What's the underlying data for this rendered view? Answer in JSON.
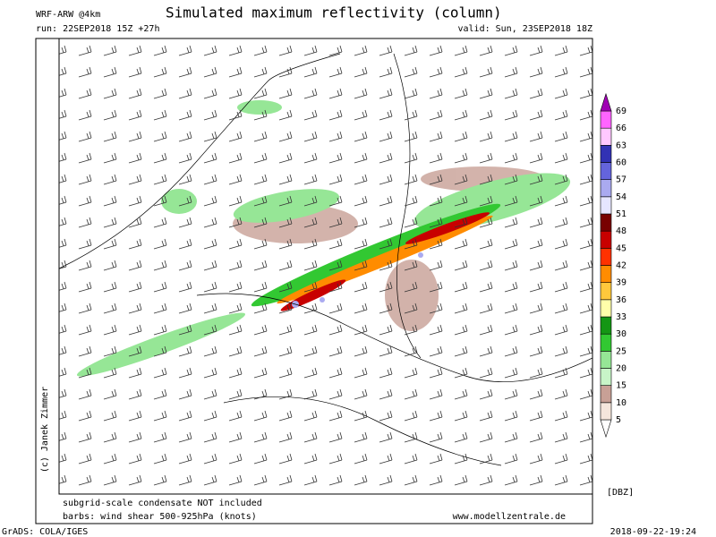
{
  "header": {
    "model": "WRF-ARW @4km",
    "title": "Simulated maximum reflectivity (column)",
    "run": "run: 22SEP2018 15Z +27h",
    "valid": "valid: Sun, 23SEP2018 18Z"
  },
  "credit": "(c) Janek Zimmer",
  "footer": {
    "note": "subgrid-scale condensate NOT included",
    "barbs": "barbs: wind shear 500-925hPa (knots)",
    "website": "www.modellzentrale.de",
    "software": "GrADS: COLA/IGES",
    "timestamp": "2018-09-22-19:24"
  },
  "colorbar": {
    "unit": "[DBZ]",
    "levels": [
      5,
      10,
      15,
      20,
      25,
      30,
      33,
      36,
      39,
      42,
      45,
      48,
      51,
      54,
      57,
      60,
      63,
      66,
      69
    ],
    "colors": [
      "#ffffff",
      "#f5e6dc",
      "#c8a096",
      "#c8f5c8",
      "#96e696",
      "#32c832",
      "#149614",
      "#ffffaa",
      "#ffc83c",
      "#ff8c00",
      "#ff3200",
      "#c80000",
      "#780000",
      "#e6e6ff",
      "#aaaaf0",
      "#6464dc",
      "#3232b4",
      "#ffc8ff",
      "#ff64ff",
      "#a000b4"
    ]
  }
}
